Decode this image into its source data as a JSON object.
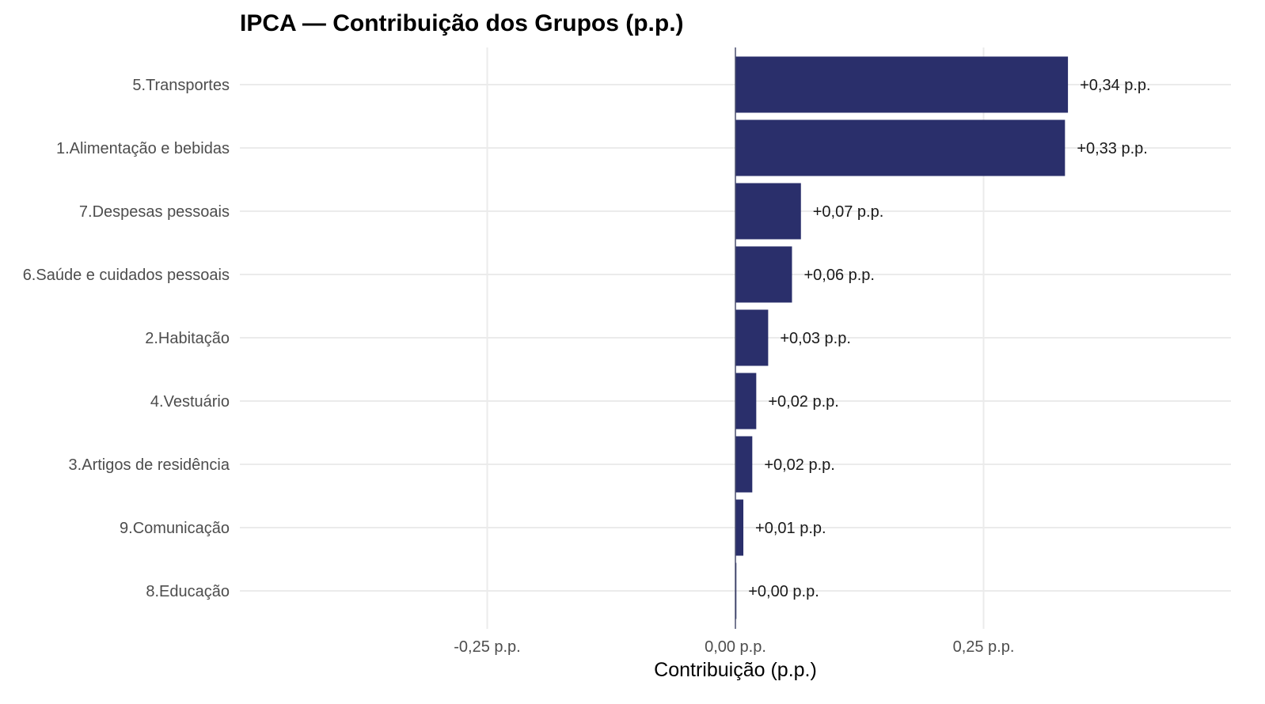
{
  "chart_data": {
    "type": "bar",
    "orientation": "horizontal",
    "title": "IPCA — Contribuição dos Grupos (p.p.)",
    "xlabel": "Contribuição (p.p.)",
    "ylabel": "",
    "xlim": [
      -0.5,
      0.5
    ],
    "x_ticks": [
      -0.25,
      0,
      0.25
    ],
    "x_tick_labels": [
      "-0,25 p.p.",
      "0,00 p.p.",
      "0,25 p.p."
    ],
    "grid": true,
    "legend": "none",
    "bar_color": "#2a2f6b",
    "categories": [
      "5.Transportes",
      "1.Alimentação e bebidas",
      "7.Despesas pessoais",
      "6.Saúde e cuidados pessoais",
      "2.Habitação",
      "4.Vestuário",
      "3.Artigos de residência",
      "9.Comunicação",
      "8.Educação"
    ],
    "values": [
      0.335,
      0.332,
      0.066,
      0.057,
      0.033,
      0.021,
      0.017,
      0.008,
      0.001
    ],
    "data_labels": [
      "+0,34 p.p.",
      "+0,33 p.p.",
      "+0,07 p.p.",
      "+0,06 p.p.",
      "+0,03 p.p.",
      "+0,02 p.p.",
      "+0,02 p.p.",
      "+0,01 p.p.",
      "+0,00 p.p."
    ]
  }
}
